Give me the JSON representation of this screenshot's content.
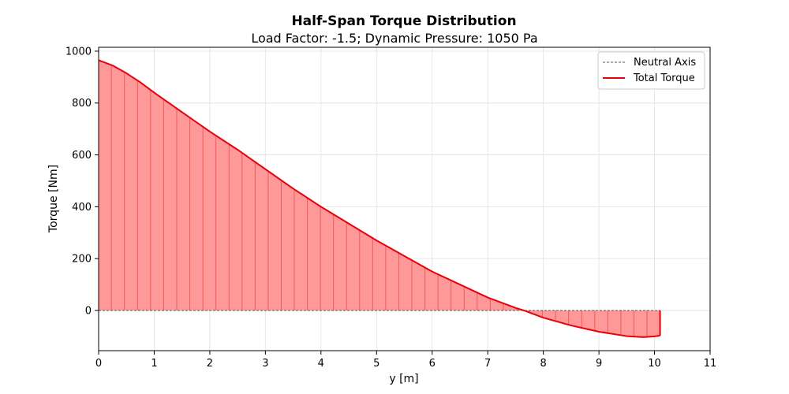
{
  "chart_data": {
    "type": "area",
    "title": "Half-Span Torque Distribution",
    "subtitle": "Load Factor: -1.5; Dynamic Pressure: 1050 Pa",
    "xlabel": "y [m]",
    "ylabel": "Torque [Nm]",
    "xlim": [
      0,
      11
    ],
    "ylim": [
      -155,
      1015
    ],
    "xticks": [
      0,
      1,
      2,
      3,
      4,
      5,
      6,
      7,
      8,
      9,
      10,
      11
    ],
    "yticks": [
      0,
      200,
      400,
      600,
      800,
      1000
    ],
    "grid": true,
    "legend_position": "top-right",
    "colors": {
      "torque_line": "#e8000b",
      "fill": "#ff9999",
      "hatch": "#e8403a",
      "neutral_axis": "#555555",
      "grid": "#e6e6e6"
    },
    "series": [
      {
        "name": "Neutral Axis",
        "style": "dashed",
        "x": [
          0,
          10.1
        ],
        "y": [
          0,
          0
        ]
      },
      {
        "name": "Total Torque",
        "style": "solid",
        "x": [
          0,
          0.25,
          0.5,
          0.75,
          1.0,
          1.5,
          2.0,
          2.5,
          3.0,
          3.5,
          4.0,
          4.5,
          5.0,
          5.5,
          6.0,
          6.5,
          7.0,
          7.5,
          7.65,
          8.0,
          8.5,
          9.0,
          9.5,
          9.8,
          10.0,
          10.1
        ],
        "y": [
          965,
          945,
          915,
          880,
          840,
          765,
          690,
          620,
          545,
          470,
          400,
          335,
          270,
          210,
          150,
          100,
          50,
          10,
          0,
          -28,
          -58,
          -82,
          -99,
          -103,
          -100,
          -97
        ]
      }
    ],
    "fill_end": {
      "x": 10.1,
      "y_from": -97,
      "y_to": 0
    }
  }
}
